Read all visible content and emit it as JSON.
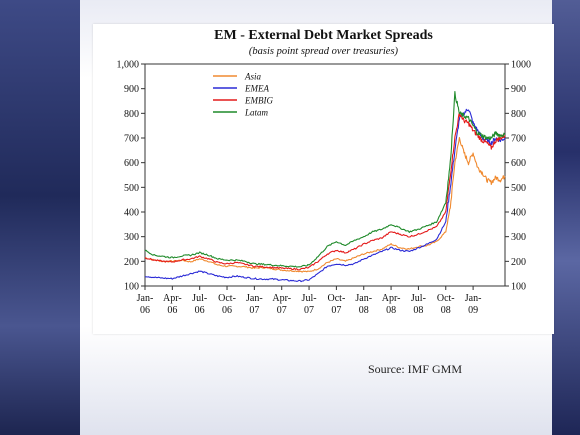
{
  "slide": {
    "source": "Source: IMF GMM"
  },
  "colors": {
    "Asia": "#f08a30",
    "EMEA": "#2b2bd6",
    "EMBIG": "#e41a1a",
    "Latam": "#1f8a2a"
  },
  "chart_data": {
    "type": "line",
    "title": "EM - External Debt Market Spreads",
    "subtitle": "(basis point spread over treasuries)",
    "xlabel": "",
    "ylabel": "",
    "ylim": [
      100,
      1000
    ],
    "y_ticks_left": [
      "100",
      "200",
      "300",
      "400",
      "500",
      "600",
      "700",
      "800",
      "900",
      "1,000"
    ],
    "y_ticks_right": [
      "100",
      "200",
      "300",
      "400",
      "500",
      "600",
      "700",
      "800",
      "900",
      "1000"
    ],
    "x_ticks": [
      {
        "t": 0,
        "l1": "Jan-",
        "l2": "06"
      },
      {
        "t": 3,
        "l1": "Apr-",
        "l2": "06"
      },
      {
        "t": 6,
        "l1": "Jul-",
        "l2": "06"
      },
      {
        "t": 9,
        "l1": "Oct-",
        "l2": "06"
      },
      {
        "t": 12,
        "l1": "Jan-",
        "l2": "07"
      },
      {
        "t": 15,
        "l1": "Apr-",
        "l2": "07"
      },
      {
        "t": 18,
        "l1": "Jul-",
        "l2": "07"
      },
      {
        "t": 21,
        "l1": "Oct-",
        "l2": "07"
      },
      {
        "t": 24,
        "l1": "Jan-",
        "l2": "08"
      },
      {
        "t": 27,
        "l1": "Apr-",
        "l2": "08"
      },
      {
        "t": 30,
        "l1": "Jul-",
        "l2": "08"
      },
      {
        "t": 33,
        "l1": "Oct-",
        "l2": "08"
      },
      {
        "t": 36,
        "l1": "Jan-",
        "l2": "09"
      }
    ],
    "x_range": [
      0,
      39.5
    ],
    "x": [
      0,
      1,
      2,
      3,
      4,
      5,
      6,
      7,
      8,
      9,
      10,
      11,
      12,
      13,
      14,
      15,
      16,
      17,
      18,
      19,
      20,
      21,
      22,
      23,
      24,
      25,
      26,
      27,
      28,
      29,
      30,
      31,
      32,
      33,
      33.5,
      34,
      34.5,
      35,
      35.5,
      36,
      36.5,
      37,
      37.5,
      38,
      38.5,
      39,
      39.5
    ],
    "legend_position": "top-left",
    "grid": false,
    "series": [
      {
        "name": "Asia",
        "values": [
          215,
          205,
          200,
          200,
          205,
          198,
          210,
          200,
          185,
          180,
          180,
          178,
          172,
          175,
          170,
          165,
          162,
          160,
          158,
          170,
          195,
          210,
          200,
          215,
          230,
          240,
          250,
          270,
          255,
          250,
          260,
          265,
          280,
          320,
          420,
          600,
          700,
          640,
          600,
          640,
          580,
          560,
          530,
          520,
          540,
          530,
          545
        ]
      },
      {
        "name": "EMEA",
        "values": [
          140,
          135,
          132,
          130,
          140,
          150,
          160,
          150,
          140,
          135,
          140,
          135,
          130,
          128,
          128,
          125,
          122,
          120,
          125,
          150,
          180,
          190,
          185,
          190,
          210,
          225,
          240,
          255,
          245,
          240,
          255,
          270,
          290,
          360,
          500,
          650,
          780,
          800,
          820,
          760,
          730,
          700,
          690,
          680,
          700,
          690,
          700
        ]
      },
      {
        "name": "EMBIG",
        "values": [
          215,
          205,
          200,
          198,
          205,
          210,
          220,
          210,
          195,
          190,
          195,
          188,
          180,
          178,
          175,
          172,
          170,
          168,
          175,
          200,
          230,
          245,
          235,
          250,
          270,
          285,
          295,
          320,
          310,
          300,
          310,
          325,
          340,
          400,
          550,
          700,
          800,
          770,
          760,
          730,
          710,
          690,
          680,
          660,
          690,
          700,
          710
        ]
      },
      {
        "name": "Latam",
        "values": [
          245,
          225,
          220,
          215,
          222,
          225,
          235,
          225,
          210,
          205,
          205,
          200,
          190,
          188,
          185,
          182,
          180,
          178,
          185,
          220,
          260,
          280,
          265,
          285,
          300,
          320,
          330,
          350,
          335,
          320,
          330,
          345,
          360,
          440,
          600,
          880,
          800,
          790,
          780,
          750,
          720,
          710,
          700,
          700,
          720,
          710,
          715
        ]
      }
    ]
  }
}
